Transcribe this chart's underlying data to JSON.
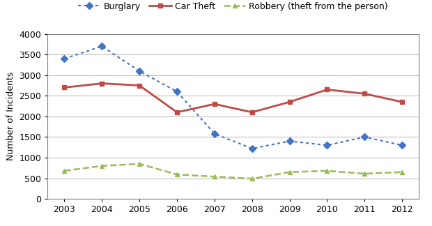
{
  "years": [
    2003,
    2004,
    2005,
    2006,
    2007,
    2008,
    2009,
    2010,
    2011,
    2012
  ],
  "burglary": [
    3400,
    3700,
    3100,
    2600,
    1580,
    1220,
    1400,
    1300,
    1500,
    1300
  ],
  "car_theft": [
    2700,
    2800,
    2750,
    2100,
    2300,
    2100,
    2350,
    2650,
    2550,
    2350
  ],
  "robbery": [
    680,
    800,
    850,
    590,
    540,
    490,
    650,
    680,
    610,
    650
  ],
  "burglary_color": "#4472C4",
  "car_theft_color": "#BE4B48",
  "robbery_color": "#9BBB59",
  "ylabel": "Number of Incidents",
  "ylim": [
    0,
    4000
  ],
  "yticks": [
    0,
    500,
    1000,
    1500,
    2000,
    2500,
    3000,
    3500,
    4000
  ],
  "background_color": "#ffffff",
  "plot_bg_color": "#ffffff",
  "grid_color": "#C0C0C0",
  "spine_color": "#808080",
  "legend_labels": [
    "Burglary",
    "Car Theft",
    "Robbery (theft from the person)"
  ],
  "figsize": [
    6.2,
    3.24
  ],
  "dpi": 100
}
